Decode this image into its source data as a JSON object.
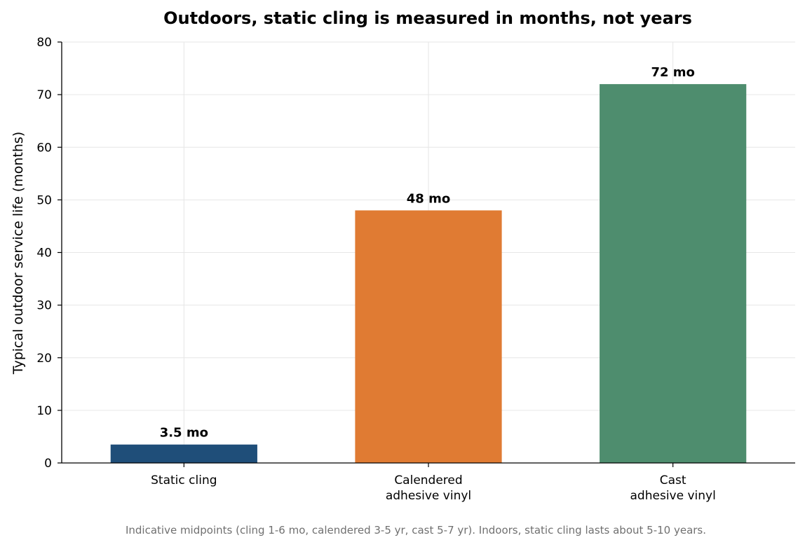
{
  "chart_data": {
    "type": "bar",
    "title": "Outdoors, static cling is measured in months, not years",
    "xlabel": "",
    "ylabel": "Typical outdoor service life (months)",
    "categories": [
      [
        "Static cling"
      ],
      [
        "Calendered",
        "adhesive vinyl"
      ],
      [
        "Cast",
        "adhesive vinyl"
      ]
    ],
    "values": [
      3.5,
      48,
      72
    ],
    "data_labels": [
      "3.5 mo",
      "48 mo",
      "72 mo"
    ],
    "colors": [
      "#1f4e79",
      "#e07b33",
      "#4e8d6e"
    ],
    "ylim": [
      0,
      80
    ],
    "yticks": [
      0,
      10,
      20,
      30,
      40,
      50,
      60,
      70,
      80
    ],
    "grid": true,
    "legend": "none",
    "footnote": "Indicative midpoints (cling 1-6 mo, calendered 3-5 yr, cast 5-7 yr). Indoors, static cling lasts about 5-10 years."
  }
}
